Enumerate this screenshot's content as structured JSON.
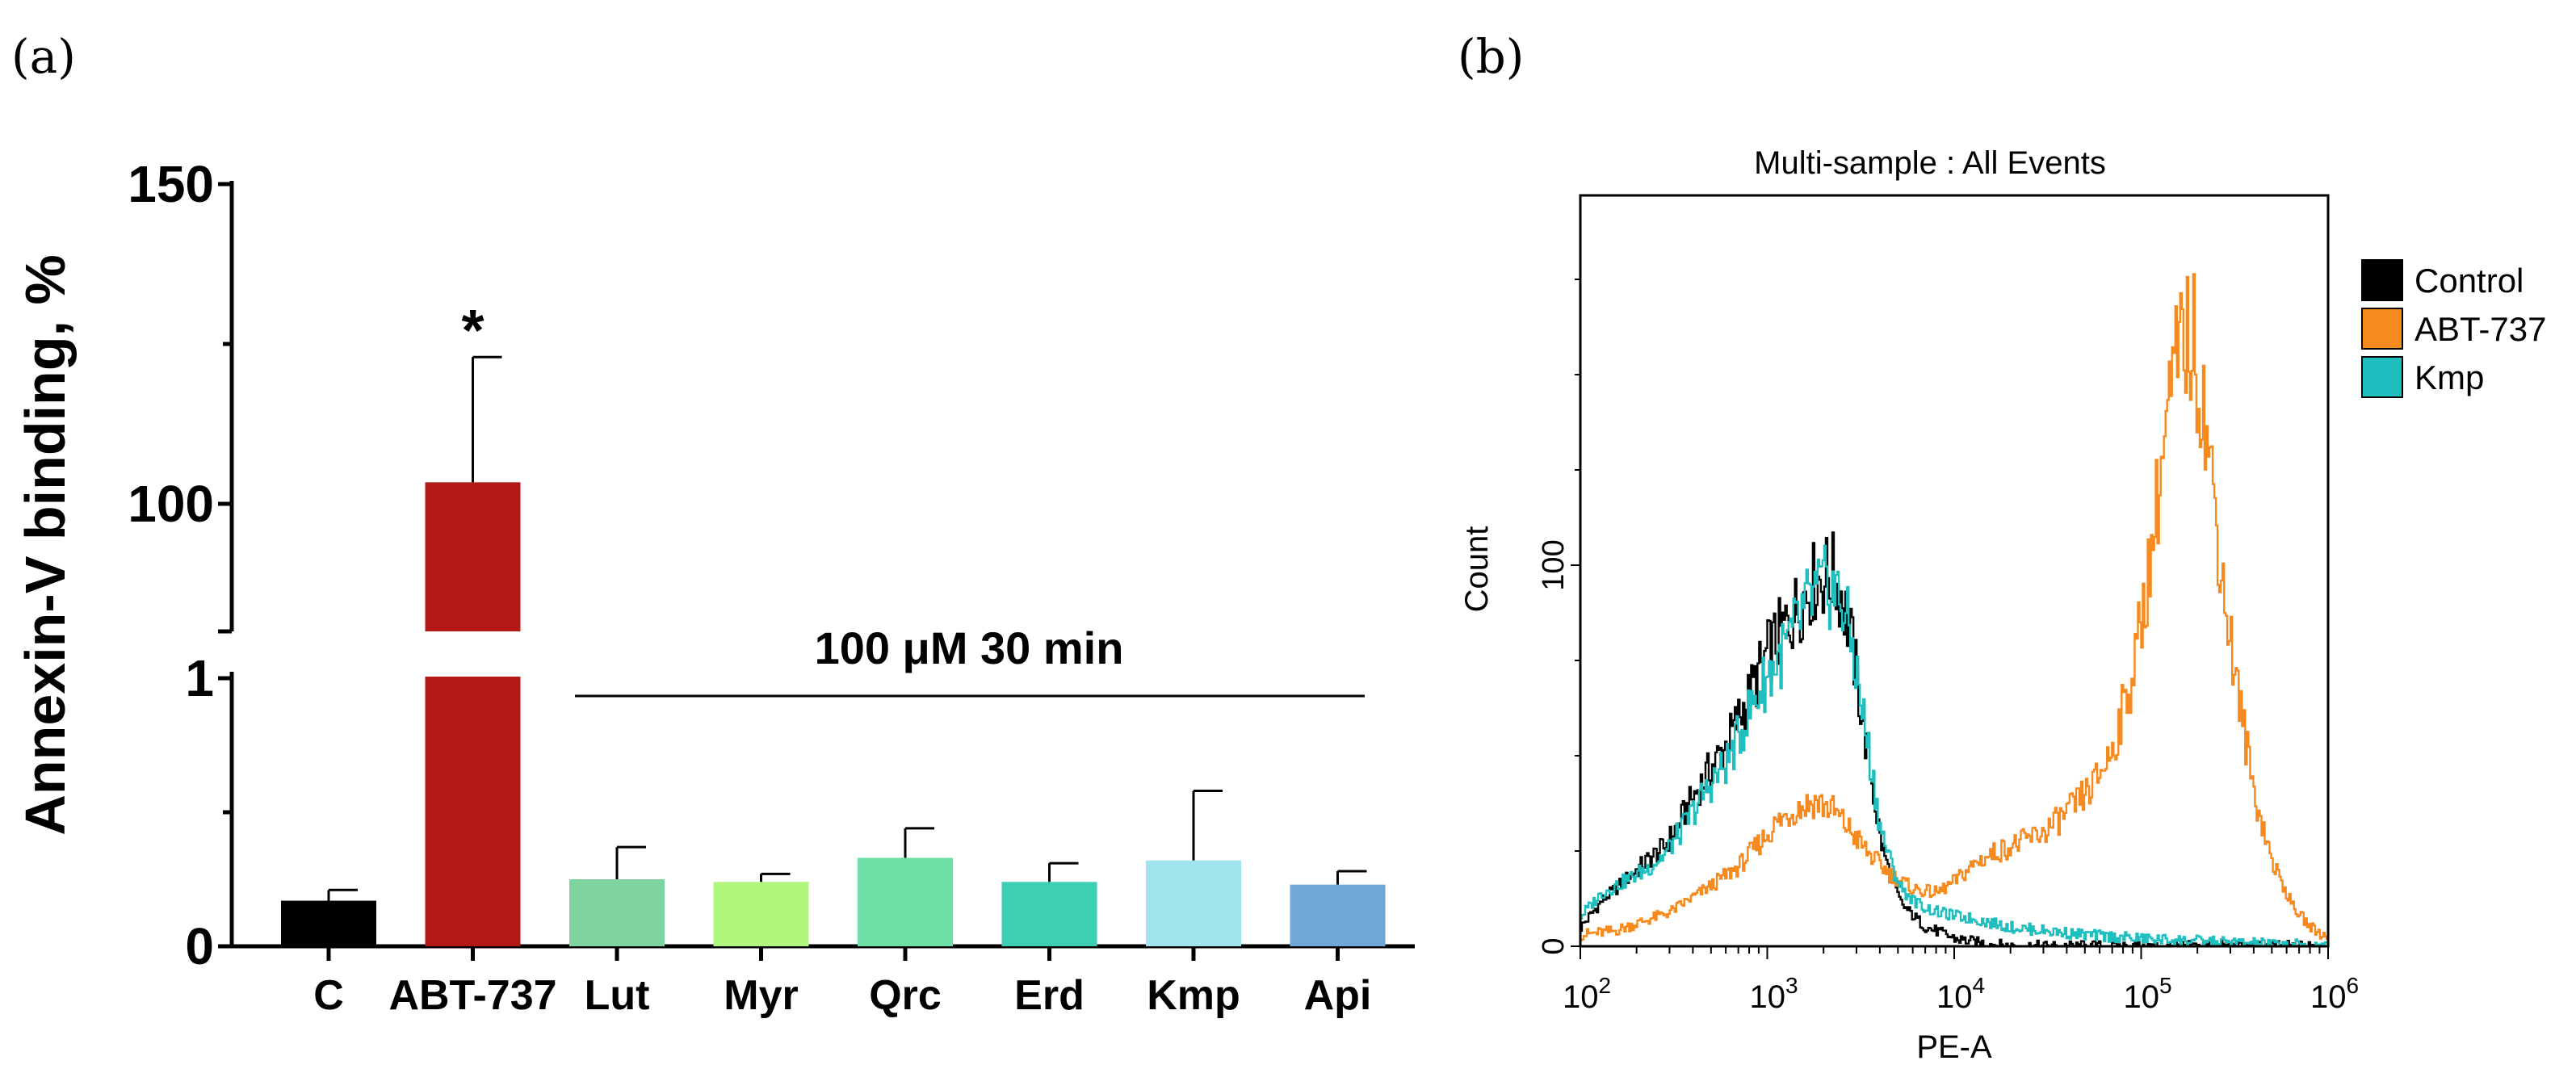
{
  "panel_labels": {
    "a": "(a)",
    "b": "(b)"
  },
  "chart_data": [
    {
      "type": "bar",
      "panel": "(a)",
      "ylabel": "Annexin-V binding, %",
      "xlabel": "",
      "ylim": [
        0,
        150
      ],
      "y_axis_break": {
        "lower": [
          0,
          1
        ],
        "upper": [
          75,
          150
        ]
      },
      "yticks": [
        "0",
        "1",
        "100",
        "150"
      ],
      "categories": [
        "C",
        "ABT-737",
        "Lut",
        "Myr",
        "Qrc",
        "Erd",
        "Kmp",
        "Api"
      ],
      "values": [
        0.17,
        100,
        0.25,
        0.24,
        0.33,
        0.24,
        0.32,
        0.23
      ],
      "errors": [
        0.04,
        21,
        0.12,
        0.03,
        0.11,
        0.07,
        0.26,
        0.05
      ],
      "colors": [
        "#000000",
        "#b31817",
        "#7fd39f",
        "#b2f77d",
        "#6ce0a6",
        "#3dcfb2",
        "#a2e4ed",
        "#6fa8d6"
      ],
      "significance": {
        "category": "ABT-737",
        "label": "*"
      },
      "annotation": "100 μM 30 min"
    },
    {
      "type": "line",
      "panel": "(b)",
      "title": "Multi-sample : All Events",
      "xlabel": "PE-A",
      "ylabel": "Count",
      "xscale": "log",
      "xlim": [
        100,
        1000000
      ],
      "ylim": [
        0,
        200
      ],
      "xticks": [
        {
          "base": "10",
          "exp": "2"
        },
        {
          "base": "10",
          "exp": "3"
        },
        {
          "base": "10",
          "exp": "4"
        },
        {
          "base": "10",
          "exp": "5"
        },
        {
          "base": "10",
          "exp": "6"
        }
      ],
      "yticks": [
        "0",
        "100"
      ],
      "legend": {
        "position": "right",
        "entries": [
          "Control",
          "ABT-737",
          "Kmp"
        ]
      },
      "series": [
        {
          "name": "Control",
          "color": "#000000",
          "x": [
            100,
            130,
            170,
            220,
            280,
            350,
            430,
            500,
            600,
            700,
            800,
            900,
            1000,
            1200,
            1400,
            1600,
            1800,
            2000,
            2200,
            2500,
            2800,
            3200,
            3600,
            4000,
            4600,
            5200,
            6000,
            7000,
            8000,
            10000,
            13000,
            20000,
            50000,
            100000,
            300000,
            1000000
          ],
          "y": [
            5,
            12,
            17,
            22,
            26,
            34,
            42,
            47,
            53,
            60,
            66,
            72,
            77,
            83,
            88,
            93,
            96,
            97,
            98,
            92,
            80,
            60,
            43,
            28,
            17,
            11,
            8,
            5,
            4,
            2,
            1,
            0,
            0,
            0,
            0,
            0
          ]
        },
        {
          "name": "ABT-737",
          "color": "#f68a1e",
          "x": [
            100,
            150,
            200,
            300,
            400,
            500,
            700,
            900,
            1100,
            1400,
            1800,
            2200,
            2800,
            3500,
            4500,
            6000,
            8000,
            10000,
            13000,
            17000,
            22000,
            30000,
            40000,
            55000,
            70000,
            90000,
            110000,
            130000,
            150000,
            170000,
            190000,
            210000,
            240000,
            280000,
            330000,
            400000,
            500000,
            650000,
            800000,
            1000000
          ],
          "y": [
            3,
            4,
            6,
            9,
            13,
            16,
            21,
            27,
            32,
            36,
            38,
            36,
            30,
            24,
            19,
            15,
            14,
            17,
            22,
            25,
            27,
            30,
            35,
            42,
            52,
            72,
            100,
            130,
            150,
            160,
            158,
            145,
            120,
            90,
            65,
            40,
            22,
            10,
            5,
            2
          ]
        },
        {
          "name": "Kmp",
          "color": "#1fbfbf",
          "x": [
            100,
            130,
            170,
            220,
            280,
            350,
            430,
            500,
            600,
            700,
            800,
            900,
            1000,
            1200,
            1400,
            1600,
            1800,
            2000,
            2200,
            2500,
            2800,
            3200,
            3600,
            4000,
            4600,
            5200,
            6000,
            7000,
            8000,
            10000,
            13000,
            20000,
            50000,
            100000,
            300000,
            1000000
          ],
          "y": [
            8,
            14,
            17,
            20,
            24,
            31,
            38,
            43,
            48,
            55,
            62,
            67,
            71,
            77,
            83,
            89,
            92,
            94,
            94,
            90,
            80,
            62,
            46,
            31,
            21,
            15,
            12,
            10,
            9,
            8,
            7,
            5,
            3,
            2,
            1,
            0
          ]
        }
      ]
    }
  ]
}
